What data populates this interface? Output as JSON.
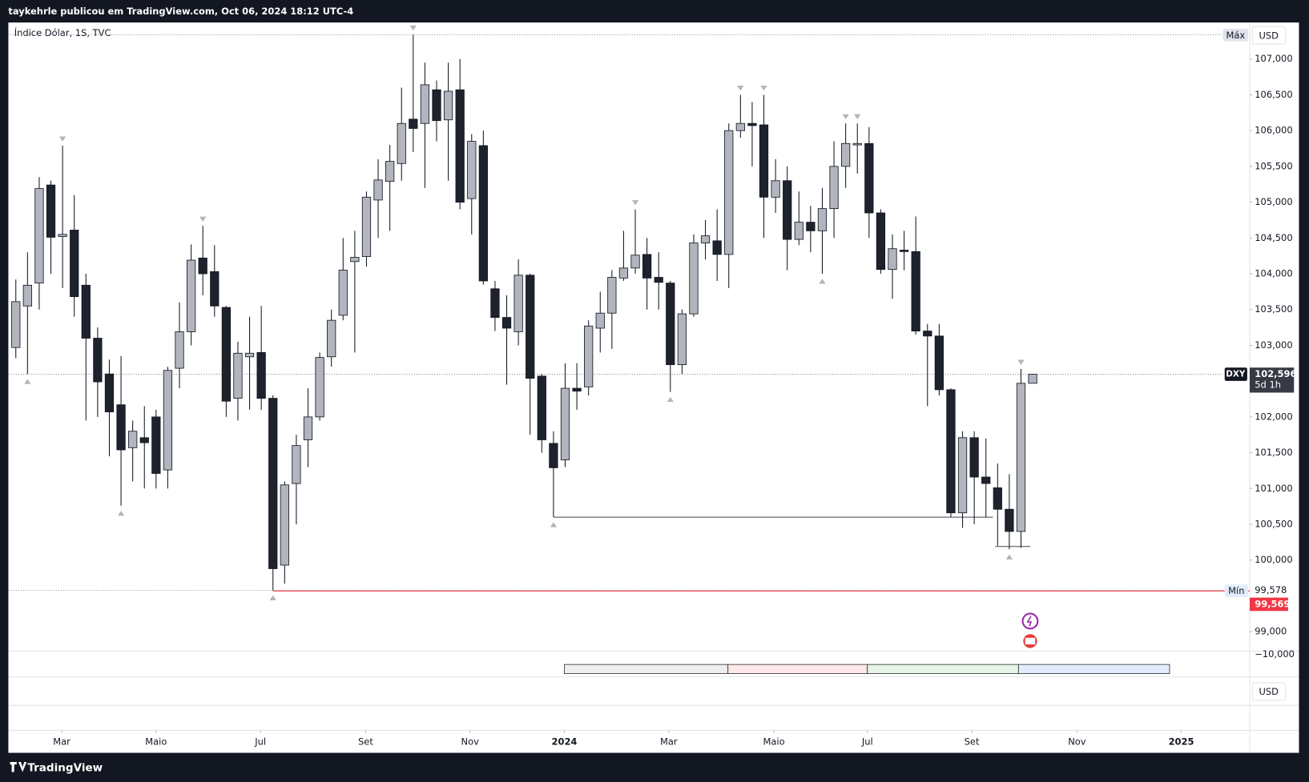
{
  "header": "taykehrle publicou em TradingView.com, Oct 06, 2024 18:12 UTC-4",
  "footer": "TradingView",
  "chart_data": {
    "type": "candlestick",
    "title": "Índice Dólar, 1S, TVC",
    "currency": "USD",
    "symbol": "DXY",
    "countdown": "5d 1h",
    "max_label": "Máx",
    "min_label": "Mín",
    "last_price": {
      "value": 102.596,
      "label": "102,596"
    },
    "min_price": {
      "value": 99.578,
      "label": "99,578"
    },
    "alert_price": {
      "value": 99.569,
      "label": "99,569"
    },
    "up_color": "#b2b5be",
    "down_color": "#1e222d",
    "open": [
      102.97,
      103.55,
      103.87,
      105.24,
      104.52,
      104.61,
      103.84,
      103.1,
      102.6,
      102.17,
      101.57,
      101.71,
      102.0,
      101.26,
      102.68,
      103.19,
      104.22,
      104.03,
      103.53,
      102.26,
      102.84,
      102.9,
      102.26,
      99.93,
      101.07,
      101.68,
      102.0,
      102.84,
      103.42,
      104.17,
      104.24,
      105.03,
      105.29,
      105.54,
      106.16,
      106.1,
      106.57,
      106.15,
      106.57,
      105.05,
      105.79,
      103.79,
      103.39,
      103.19,
      103.98,
      102.57,
      101.63,
      101.4,
      102.4,
      102.42,
      103.24,
      103.45,
      103.94,
      104.08,
      104.27,
      103.95,
      103.87,
      102.73,
      103.44,
      104.43,
      104.46,
      104.27,
      106.0,
      106.1,
      106.08,
      105.07,
      105.3,
      104.48,
      104.72,
      104.6,
      104.91,
      105.5,
      105.8,
      105.82,
      104.85,
      104.06,
      104.33,
      104.31,
      103.2,
      103.13,
      102.38,
      100.66,
      101.71,
      101.16,
      101.01,
      100.71,
      100.4,
      102.47
    ],
    "high": [
      103.92,
      104.3,
      105.35,
      105.3,
      105.79,
      105.1,
      104.0,
      103.25,
      102.8,
      102.85,
      101.95,
      102.15,
      102.1,
      102.7,
      103.6,
      104.41,
      104.67,
      104.4,
      103.55,
      103.05,
      103.4,
      103.55,
      102.3,
      101.1,
      101.75,
      102.4,
      102.9,
      103.5,
      104.5,
      104.6,
      105.15,
      105.6,
      105.8,
      106.6,
      107.34,
      106.95,
      106.7,
      106.95,
      107.0,
      105.95,
      106.0,
      103.9,
      103.7,
      104.2,
      104.0,
      102.6,
      101.8,
      102.75,
      102.75,
      103.35,
      103.75,
      104.05,
      104.6,
      104.9,
      104.5,
      104.3,
      103.9,
      103.5,
      104.55,
      104.75,
      104.9,
      106.1,
      106.5,
      106.4,
      106.5,
      105.6,
      105.5,
      105.15,
      104.95,
      105.2,
      105.85,
      106.1,
      106.1,
      106.05,
      104.9,
      104.55,
      104.6,
      104.8,
      103.3,
      103.3,
      102.4,
      101.8,
      101.8,
      101.7,
      101.35,
      101.2,
      102.67,
      102.6
    ],
    "low": [
      102.82,
      102.6,
      103.5,
      104.0,
      103.8,
      103.4,
      101.95,
      102.0,
      101.45,
      100.76,
      101.1,
      101.0,
      101.0,
      101.0,
      102.4,
      103.0,
      103.7,
      103.4,
      102.0,
      101.95,
      102.1,
      102.1,
      99.578,
      99.67,
      100.5,
      101.3,
      101.95,
      102.7,
      103.35,
      102.9,
      104.1,
      104.5,
      104.6,
      105.3,
      105.7,
      105.2,
      105.85,
      105.3,
      104.9,
      104.55,
      103.85,
      103.2,
      102.45,
      103.0,
      101.75,
      101.5,
      100.6,
      101.3,
      102.1,
      102.3,
      102.9,
      102.95,
      103.9,
      104.0,
      103.5,
      103.5,
      102.35,
      102.6,
      103.4,
      104.2,
      103.9,
      103.8,
      105.9,
      105.5,
      104.5,
      104.85,
      104.05,
      104.4,
      104.3,
      104.0,
      104.5,
      105.2,
      105.4,
      104.5,
      104.0,
      103.65,
      104.05,
      103.15,
      102.15,
      102.3,
      100.6,
      100.45,
      100.5,
      100.6,
      100.2,
      100.15,
      100.17,
      102.47
    ],
    "close": [
      103.61,
      103.84,
      105.19,
      104.51,
      104.55,
      103.68,
      103.1,
      102.49,
      102.07,
      101.54,
      101.8,
      101.64,
      101.21,
      102.65,
      103.19,
      104.19,
      104.0,
      103.55,
      102.22,
      102.89,
      102.89,
      102.26,
      99.88,
      101.05,
      101.6,
      102.0,
      102.83,
      103.35,
      104.05,
      104.23,
      105.07,
      105.31,
      105.57,
      106.1,
      106.03,
      106.64,
      106.14,
      106.55,
      105.0,
      105.85,
      103.9,
      103.39,
      103.24,
      103.98,
      102.54,
      101.68,
      101.29,
      102.4,
      102.36,
      103.27,
      103.45,
      103.95,
      104.08,
      104.26,
      103.94,
      103.88,
      102.73,
      103.44,
      104.43,
      104.53,
      104.27,
      106.0,
      106.1,
      106.07,
      105.07,
      105.3,
      104.48,
      104.72,
      104.6,
      104.91,
      105.5,
      105.82,
      105.82,
      104.85,
      104.06,
      104.35,
      104.31,
      103.2,
      103.13,
      102.38,
      100.66,
      101.71,
      101.16,
      101.07,
      100.71,
      100.4,
      102.47,
      102.596
    ],
    "support_lines": [
      {
        "value": 100.6,
        "from": 46,
        "to": 83.6
      },
      {
        "value": 100.19,
        "from": 83.8,
        "to": 86.8
      }
    ],
    "xlim": [
      -0.64,
      105.57
    ],
    "xticks": [
      {
        "value": 3.93,
        "label": "Mar"
      },
      {
        "value": 12,
        "label": "Maio"
      },
      {
        "value": 20.93,
        "label": "Jul"
      },
      {
        "value": 29.93,
        "label": "Set"
      },
      {
        "value": 38.86,
        "label": "Nov"
      },
      {
        "value": 46.93,
        "label": "2024"
      },
      {
        "value": 55.86,
        "label": "Mar"
      },
      {
        "value": 64.86,
        "label": "Maio"
      },
      {
        "value": 72.86,
        "label": "Jul"
      },
      {
        "value": 81.79,
        "label": "Set"
      },
      {
        "value": 90.79,
        "label": "Nov"
      },
      {
        "value": 99.71,
        "label": "2025"
      }
    ],
    "ylim": [
      98.74,
      107.51
    ],
    "yticks": [
      {
        "value": 99,
        "label": "99,000"
      },
      {
        "value": 100,
        "label": "100,000"
      },
      {
        "value": 100.5,
        "label": "100,500"
      },
      {
        "value": 101,
        "label": "101,000"
      },
      {
        "value": 101.5,
        "label": "101,500"
      },
      {
        "value": 102,
        "label": "102,000"
      },
      {
        "value": 102.5,
        "label": "102,500"
      },
      {
        "value": 103,
        "label": "103,000"
      },
      {
        "value": 103.5,
        "label": "103,500"
      },
      {
        "value": 104,
        "label": "104,000"
      },
      {
        "value": 104.5,
        "label": "104,500"
      },
      {
        "value": 105,
        "label": "105,000"
      },
      {
        "value": 105.5,
        "label": "105,500"
      },
      {
        "value": 106,
        "label": "106,000"
      },
      {
        "value": 106.5,
        "label": "106,500"
      },
      {
        "value": 107,
        "label": "107,000"
      }
    ],
    "lower_pane": {
      "yticks": [
        {
          "value": -10000,
          "label": "−10,000"
        }
      ],
      "currency": "USD"
    }
  }
}
